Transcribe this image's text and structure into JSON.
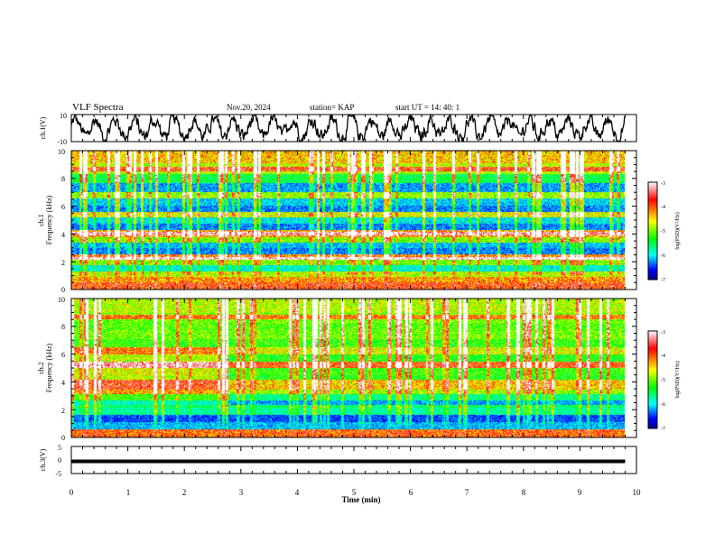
{
  "header": {
    "title": "VLF Spectra",
    "date": "Nov.20, 2024",
    "station": "station= KAP",
    "start": "start  UT =   14: 40: 1"
  },
  "chart_data": [
    {
      "type": "line",
      "panel": "ch1",
      "ylabel": "ch.1(V)",
      "ylim": [
        -10,
        10
      ],
      "yticks": [
        "10",
        "-10"
      ],
      "xlim": [
        0,
        10
      ],
      "series": [
        {
          "kind": "noisy waveform",
          "mean": 0,
          "amplitude": 5
        }
      ]
    },
    {
      "type": "heatmap",
      "panel": "ch2spec",
      "ylabel_top": "ch.1",
      "ylabel": "Frequency (kHz)",
      "ylim": [
        0,
        10
      ],
      "yticks": [
        "0",
        "2",
        "4",
        "6",
        "8",
        "10"
      ],
      "xlim": [
        0,
        9.8
      ],
      "colorbar": {
        "label": "log(PSD)(V²/Hz)",
        "range": [
          -7,
          -3
        ],
        "ticks": [
          "-3",
          "-4",
          "-5",
          "-6",
          "-7"
        ]
      },
      "bands": [
        {
          "f": 0.3,
          "level": -3.6
        },
        {
          "f": 0.7,
          "level": -3.9
        },
        {
          "f": 1.0,
          "level": -4.3
        },
        {
          "f": 1.5,
          "level": -5.5
        },
        {
          "f": 2.0,
          "level": -4.5
        },
        {
          "f": 2.3,
          "level": -3.8
        },
        {
          "f": 2.7,
          "level": -6.0
        },
        {
          "f": 3.2,
          "level": -5.8
        },
        {
          "f": 3.5,
          "level": -4.5
        },
        {
          "f": 4.0,
          "level": -3.9
        },
        {
          "f": 4.5,
          "level": -6.0
        },
        {
          "f": 5.0,
          "level": -5.6
        },
        {
          "f": 5.4,
          "level": -4.2
        },
        {
          "f": 5.8,
          "level": -6.0
        },
        {
          "f": 6.3,
          "level": -5.7
        },
        {
          "f": 6.8,
          "level": -4.4
        },
        {
          "f": 7.3,
          "level": -5.9
        },
        {
          "f": 8.0,
          "level": -5.0
        },
        {
          "f": 8.7,
          "level": -4.3
        },
        {
          "f": 9.5,
          "level": -4.0
        }
      ]
    },
    {
      "type": "heatmap",
      "panel": "ch2spec2",
      "ylabel_top": "ch.2",
      "ylabel": "Frequency (kHz)",
      "ylim": [
        0,
        10
      ],
      "yticks": [
        "0",
        "2",
        "4",
        "6",
        "8",
        "10"
      ],
      "xlim": [
        0,
        9.8
      ],
      "colorbar": {
        "label": "log(PSD)(V²/Hz)",
        "range": [
          -7,
          -3
        ],
        "ticks": [
          "-3",
          "-4",
          "-5",
          "-6",
          "-7"
        ]
      },
      "bands": [
        {
          "f": 0.3,
          "level": -3.7
        },
        {
          "f": 0.8,
          "level": -5.8
        },
        {
          "f": 1.3,
          "level": -6.2
        },
        {
          "f": 1.9,
          "level": -5.3
        },
        {
          "f": 2.4,
          "level": -5.9
        },
        {
          "f": 2.9,
          "level": -5.2
        },
        {
          "f": 3.3,
          "level": -4.4
        },
        {
          "f": 3.6,
          "level": -4.0
        },
        {
          "f": 4.2,
          "level": -4.8
        },
        {
          "f": 4.8,
          "level": -4.7
        },
        {
          "f": 5.2,
          "level": -3.6
        },
        {
          "f": 5.7,
          "level": -4.8
        },
        {
          "f": 6.2,
          "level": -4.2
        },
        {
          "f": 6.8,
          "level": -4.7
        },
        {
          "f": 7.4,
          "level": -4.5
        },
        {
          "f": 8.0,
          "level": -4.6
        },
        {
          "f": 8.6,
          "level": -4.5
        },
        {
          "f": 9.4,
          "level": -4.3
        }
      ]
    },
    {
      "type": "line",
      "panel": "ch3",
      "ylabel": "ch.3(V)",
      "ylim": [
        -5,
        5
      ],
      "yticks": [
        "5",
        "0",
        "-5"
      ],
      "xlim": [
        0,
        10
      ],
      "xlabel": "Time  (min)",
      "xticks": [
        "0",
        "1",
        "2",
        "3",
        "4",
        "5",
        "6",
        "7",
        "8",
        "9",
        "10"
      ],
      "series": [
        {
          "kind": "flat",
          "value": -0.5
        }
      ]
    }
  ]
}
